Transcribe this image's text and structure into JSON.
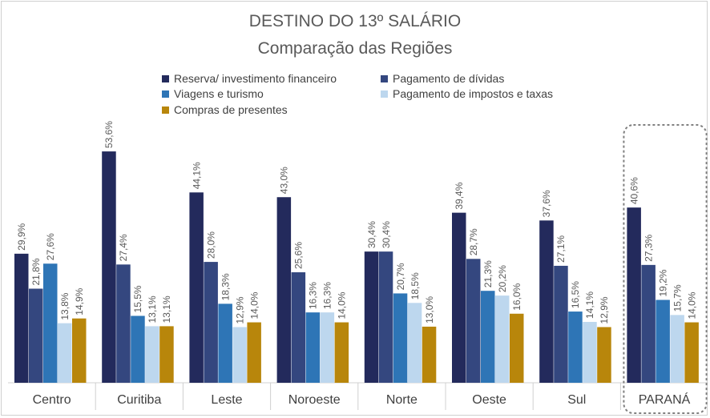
{
  "chart_data": {
    "type": "bar",
    "title": "DESTINO DO 13º SALÁRIO",
    "subtitle": "Comparação das Regiões",
    "categories": [
      "Centro",
      "Curitiba",
      "Leste",
      "Noroeste",
      "Norte",
      "Oeste",
      "Sul",
      "PARANÁ"
    ],
    "series": [
      {
        "name": "Reserva/ investimento financeiro",
        "color": "#232a5c",
        "values": [
          29.9,
          53.6,
          44.1,
          43.0,
          30.4,
          39.4,
          37.6,
          40.6
        ]
      },
      {
        "name": "Pagamento de dívidas",
        "color": "#34477f",
        "values": [
          21.8,
          27.4,
          28.0,
          25.6,
          30.4,
          28.7,
          27.1,
          27.3
        ]
      },
      {
        "name": "Viagens e turismo",
        "color": "#2e75b6",
        "values": [
          27.6,
          15.5,
          18.3,
          16.3,
          20.7,
          21.3,
          16.5,
          19.2
        ]
      },
      {
        "name": "Pagamento de impostos e taxas",
        "color": "#bdd7ee",
        "values": [
          13.8,
          13.1,
          12.9,
          16.3,
          18.5,
          20.2,
          14.1,
          15.7
        ]
      },
      {
        "name": "Compras de presentes",
        "color": "#b8860b",
        "values": [
          14.9,
          13.1,
          14.0,
          14.0,
          13.0,
          16.0,
          12.9,
          14.0
        ]
      }
    ],
    "data_labels": [
      [
        "29,9%",
        "21,8%",
        "27,6%",
        "13,8%",
        "14,9%"
      ],
      [
        "53,6%",
        "27,4%",
        "15,5%",
        "13,1%",
        "13,1%"
      ],
      [
        "44,1%",
        "28,0%",
        "18,3%",
        "12,9%",
        "14,0%"
      ],
      [
        "43,0%",
        "25,6%",
        "16,3%",
        "16,3%",
        "14,0%"
      ],
      [
        "30,4%",
        "30,4%",
        "20,7%",
        "18,5%",
        "13,0%"
      ],
      [
        "39,4%",
        "28,7%",
        "21,3%",
        "20,2%",
        "16,0%"
      ],
      [
        "37,6%",
        "27,1%",
        "16,5%",
        "14,1%",
        "12,9%"
      ],
      [
        "40,6%",
        "27,3%",
        "19,2%",
        "15,7%",
        "14,0%"
      ]
    ],
    "ylim": [
      0,
      60
    ],
    "grid": false,
    "legend": "top",
    "highlight_category": "PARANÁ"
  }
}
